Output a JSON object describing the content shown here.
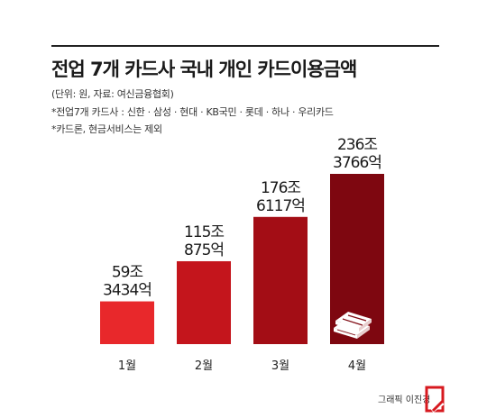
{
  "header": {
    "title": "전업 7개 카드사 국내 개인 카드이용금액",
    "unit_source": "(단위: 원, 자료: 여신금융협회)",
    "note1": "*전업7개 카드사 : 신한 · 삼성 · 현대 · KB국민 · 롯데 · 하나 · 우리카드",
    "note2": "*카드론, 현금서비스는 제외"
  },
  "chart_data": {
    "type": "bar",
    "categories": [
      "1월",
      "2월",
      "3월",
      "4월"
    ],
    "values": [
      59.3434,
      115.0875,
      176.6117,
      236.3766
    ],
    "value_unit": "조원",
    "data_labels": [
      [
        "59조",
        "3434억"
      ],
      [
        "115조",
        "875억"
      ],
      [
        "176조",
        "6117억"
      ],
      [
        "236조",
        "3766억"
      ]
    ],
    "bar_colors": [
      "#e8282b",
      "#c4151c",
      "#a30d15",
      "#7e0710"
    ],
    "ylim": [
      0,
      250
    ],
    "grid": false,
    "legend": "none"
  },
  "footer": {
    "credit": "그래픽 이진경",
    "logo_icon": "asiae-logo-icon"
  },
  "decorations": {
    "bar4_icon": "money-stack-icon"
  }
}
